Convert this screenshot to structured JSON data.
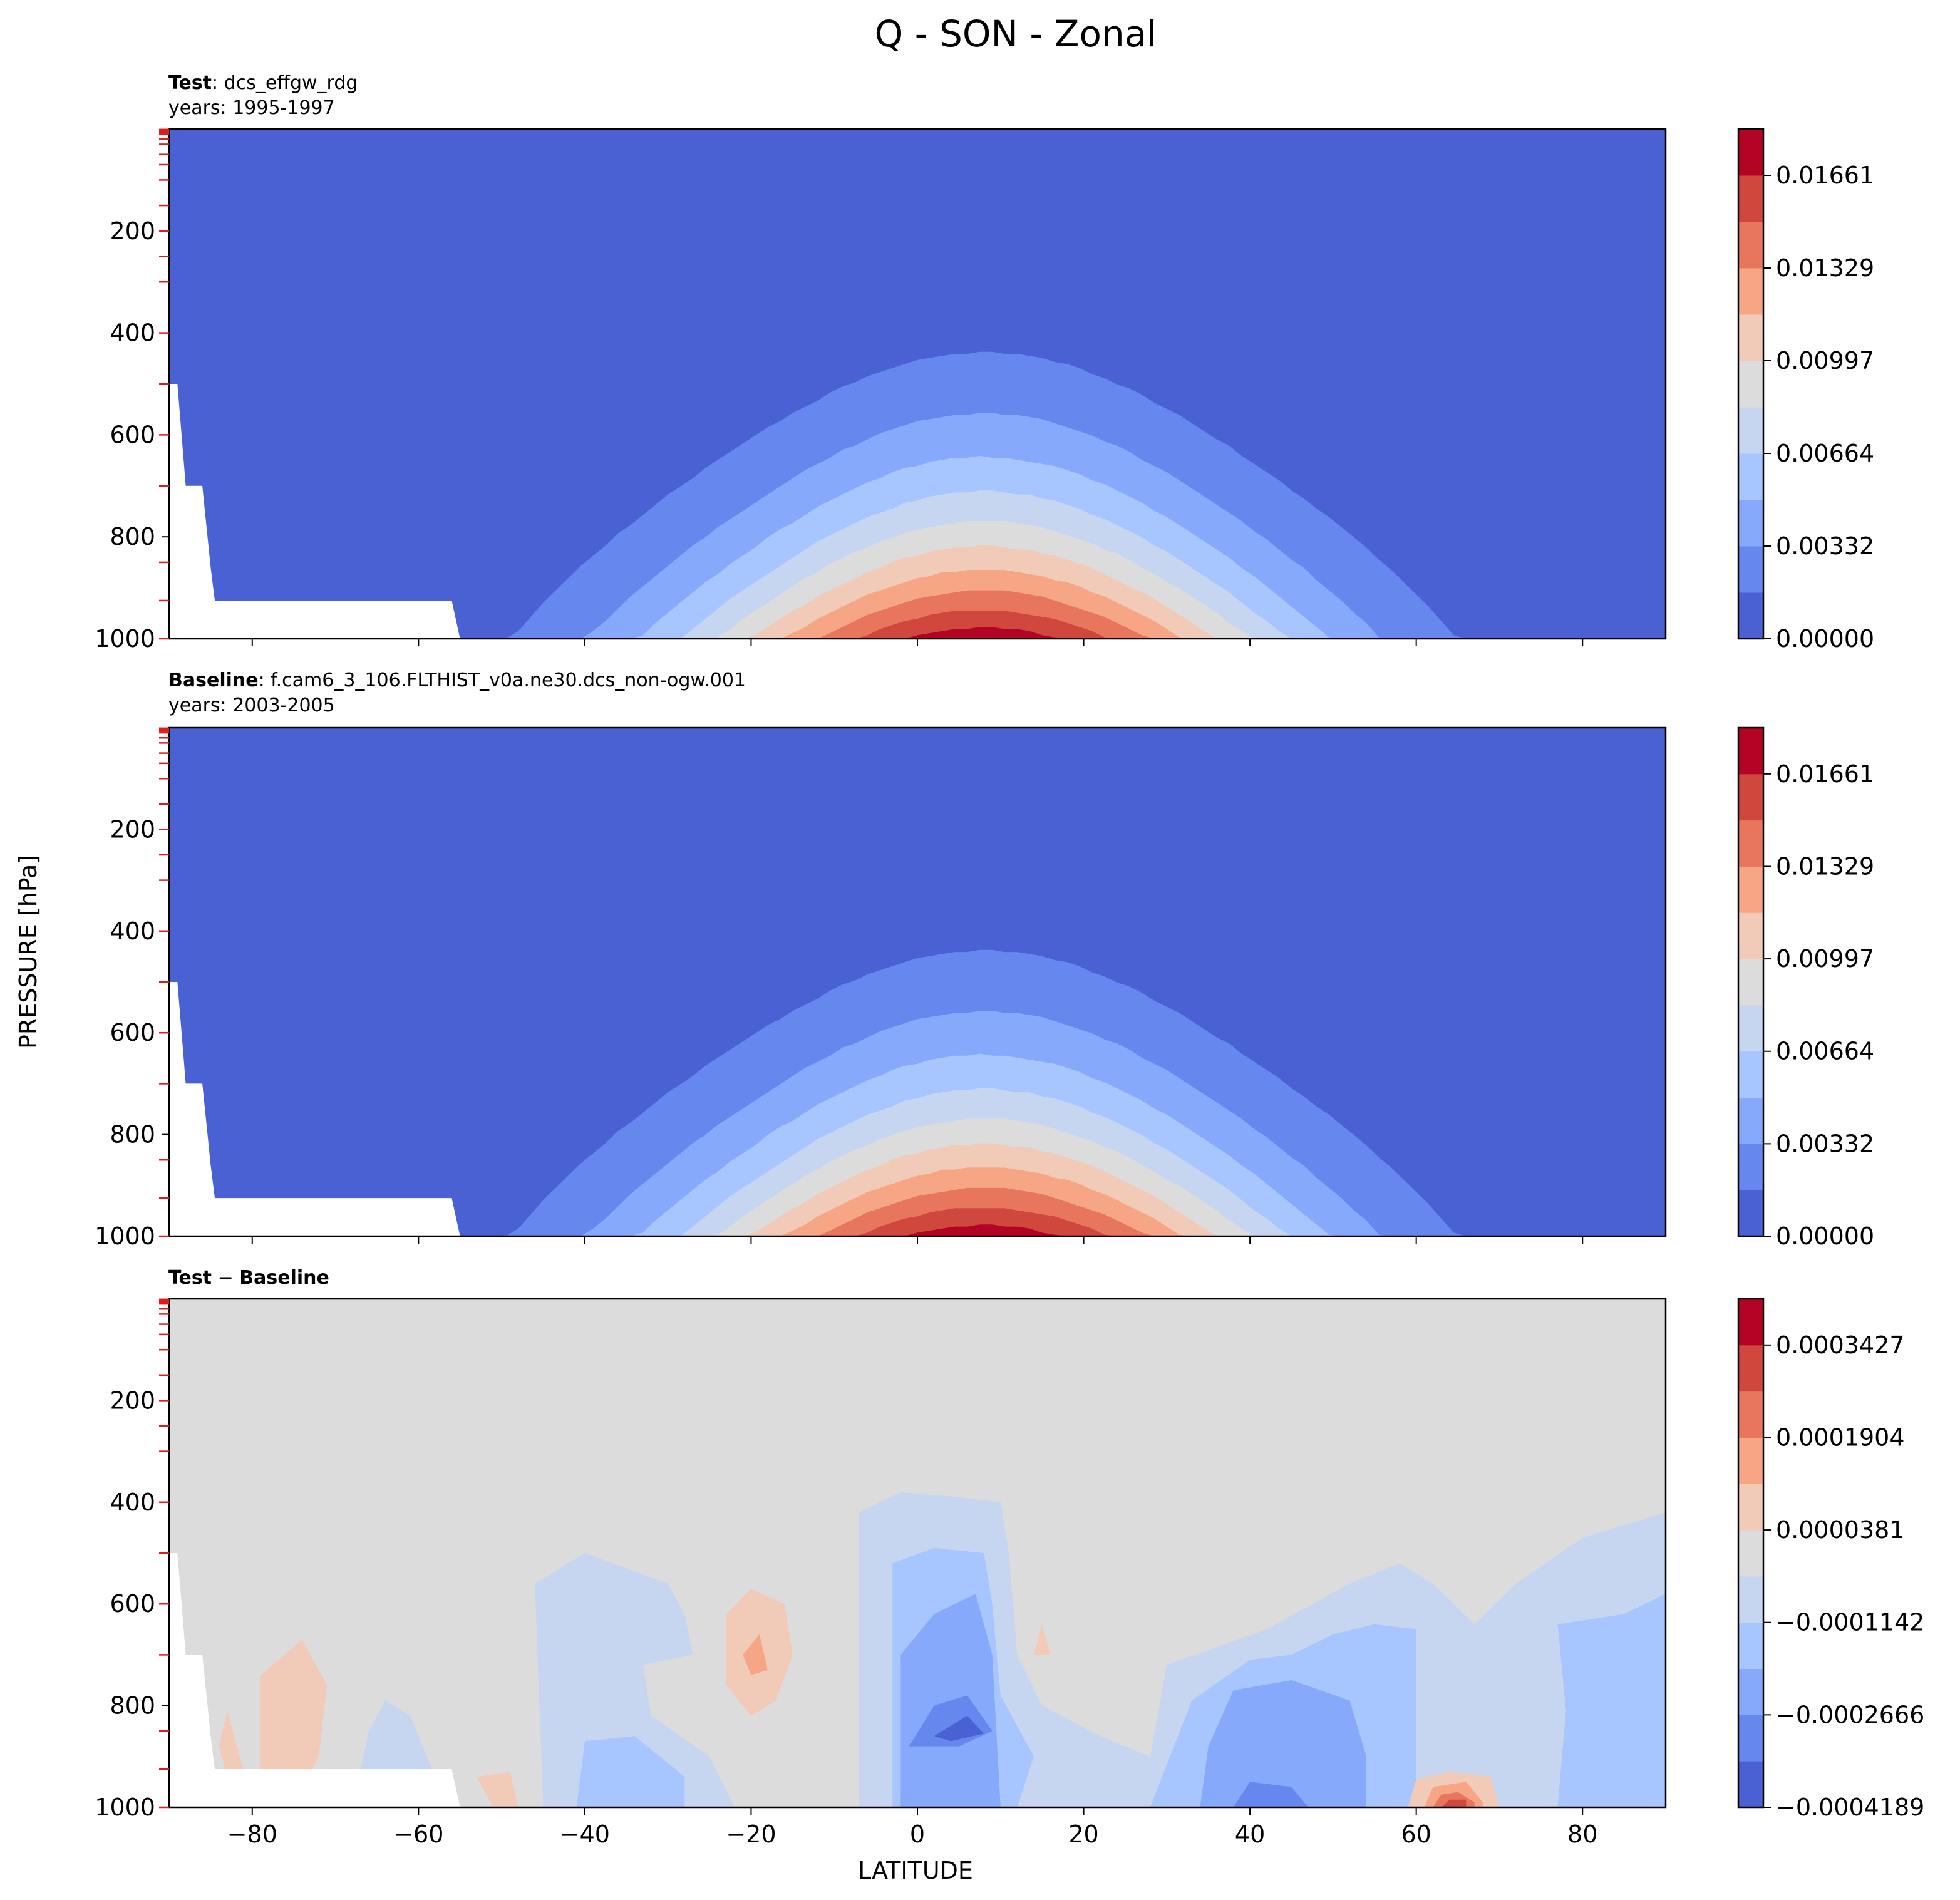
{
  "figure": {
    "title": "Q - SON - Zonal",
    "xlabel": "LATITUDE",
    "ylabel": "PRESSURE [hPa]"
  },
  "chart_data": [
    {
      "type": "contour",
      "panel": "test",
      "title_bold": "Test",
      "title_text": ": dcs_effgw_rdg",
      "subtitle": "years: 1995-1997",
      "x_ticks": [
        -80,
        -60,
        -40,
        -20,
        0,
        20,
        40,
        60,
        80
      ],
      "x_tick_labels_shown": false,
      "y_ticks": [
        200,
        400,
        600,
        800,
        1000
      ],
      "xlim": [
        -90,
        90
      ],
      "ylim": [
        1000,
        0
      ],
      "colormap": "coolwarm",
      "levels": 11,
      "colorbar_ticks": [
        "0.01661",
        "0.01329",
        "0.00997",
        "0.00664",
        "0.00332",
        "0.00000"
      ],
      "colorbar_range": [
        0.0,
        0.0183
      ],
      "peak": {
        "lat": 8,
        "pressure": 1000,
        "value": 0.0178
      }
    },
    {
      "type": "contour",
      "panel": "baseline",
      "title_bold": "Baseline",
      "title_text": ": f.cam6_3_106.FLTHIST_v0a.ne30.dcs_non-ogw.001",
      "subtitle": "years: 2003-2005",
      "x_ticks": [
        -80,
        -60,
        -40,
        -20,
        0,
        20,
        40,
        60,
        80
      ],
      "x_tick_labels_shown": false,
      "y_ticks": [
        200,
        400,
        600,
        800,
        1000
      ],
      "xlim": [
        -90,
        90
      ],
      "ylim": [
        1000,
        0
      ],
      "colormap": "coolwarm",
      "levels": 11,
      "colorbar_ticks": [
        "0.01661",
        "0.01329",
        "0.00997",
        "0.00664",
        "0.00332",
        "0.00000"
      ],
      "colorbar_range": [
        0.0,
        0.0183
      ],
      "peak": {
        "lat": 8,
        "pressure": 1000,
        "value": 0.0178
      }
    },
    {
      "type": "contour",
      "panel": "difference",
      "title_bold_1": "Test",
      "title_sep": " − ",
      "title_bold_2": "Baseline",
      "x_ticks": [
        -80,
        -60,
        -40,
        -20,
        0,
        20,
        40,
        60,
        80
      ],
      "x_tick_labels": [
        "−80",
        "−60",
        "−40",
        "−20",
        "0",
        "20",
        "40",
        "60",
        "80"
      ],
      "y_ticks": [
        200,
        400,
        600,
        800,
        1000
      ],
      "xlim": [
        -90,
        90
      ],
      "ylim": [
        1000,
        0
      ],
      "colormap": "coolwarm",
      "levels": 11,
      "colorbar_ticks": [
        "0.0003427",
        "0.0001904",
        "0.0000381",
        "−0.0001142",
        "−0.0002666",
        "−0.0004189"
      ],
      "colorbar_range": [
        -0.0004189,
        0.0004189
      ],
      "features": [
        {
          "lat": 5,
          "pressure": 850,
          "sign": "negative",
          "strength": "min"
        },
        {
          "lat": -20,
          "pressure": 700,
          "sign": "positive"
        },
        {
          "lat": -75,
          "pressure": 800,
          "sign": "positive"
        },
        {
          "lat": 65,
          "pressure": 1000,
          "sign": "positive",
          "strength": "max"
        },
        {
          "lat": 40,
          "pressure": 900,
          "sign": "negative"
        }
      ]
    }
  ],
  "colors": {
    "coolwarm_11": [
      "#4961d2",
      "#6687ed",
      "#86a9fc",
      "#a7c5fe",
      "#c6d6f1",
      "#dddcdc",
      "#f1cbb8",
      "#f6a685",
      "#e8765c",
      "#d0473d",
      "#b40426"
    ],
    "axis": "#000000",
    "pressure_marker": "#e31a1c"
  }
}
